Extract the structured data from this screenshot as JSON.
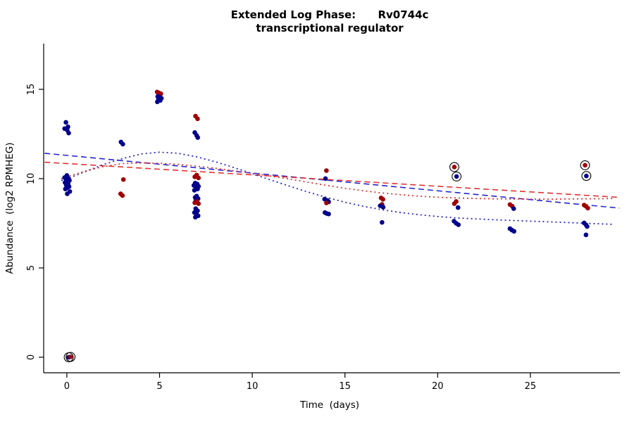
{
  "title": {
    "line1": "Extended Log Phase:      Rv0744c",
    "line2": "transcriptional regulator"
  },
  "chart_data": {
    "type": "scatter",
    "title": "Extended Log Phase: Rv0744c",
    "subtitle": "transcriptional regulator",
    "xlabel": "Time  (days)",
    "ylabel": "Abundance  (log2 RPMHEG)",
    "xlim": [
      -1.25,
      29.83
    ],
    "ylim": [
      -0.87,
      17.56
    ],
    "xticks": [
      0,
      5,
      10,
      15,
      20,
      25
    ],
    "yticks": [
      0,
      5,
      10,
      15
    ],
    "grid": false,
    "legend": "none",
    "colors": {
      "b": "#00008B",
      "r": "#A00000",
      "blue_line": "#2525D0",
      "red_line": "#E23333",
      "ring": "#000000"
    },
    "curves": [
      {
        "name": "blue-dashed-linear-fit",
        "color": "#2525D0",
        "dash": "8,5",
        "width": 1.6,
        "points": [
          [
            -1.2,
            11.42
          ],
          [
            29.8,
            8.35
          ]
        ]
      },
      {
        "name": "red-dashed-linear-fit",
        "color": "#E23333",
        "dash": "8,5",
        "width": 1.6,
        "points": [
          [
            -1.2,
            10.92
          ],
          [
            29.8,
            8.95
          ]
        ]
      },
      {
        "name": "blue-dotted-smooth-fit",
        "color": "#2525D0",
        "dash": "2,4",
        "width": 1.8,
        "points": [
          [
            -0.3,
            9.9
          ],
          [
            0,
            9.98
          ],
          [
            1,
            10.4
          ],
          [
            2,
            10.8
          ],
          [
            3,
            11.12
          ],
          [
            4,
            11.38
          ],
          [
            5,
            11.48
          ],
          [
            6,
            11.42
          ],
          [
            7,
            11.22
          ],
          [
            8,
            10.95
          ],
          [
            9,
            10.62
          ],
          [
            10,
            10.28
          ],
          [
            11,
            9.92
          ],
          [
            12,
            9.58
          ],
          [
            13,
            9.25
          ],
          [
            14,
            8.95
          ],
          [
            15,
            8.68
          ],
          [
            16,
            8.45
          ],
          [
            17,
            8.26
          ],
          [
            18,
            8.1
          ],
          [
            19,
            7.98
          ],
          [
            20,
            7.88
          ],
          [
            21,
            7.8
          ],
          [
            22,
            7.75
          ],
          [
            23,
            7.7
          ],
          [
            24,
            7.66
          ],
          [
            25,
            7.62
          ],
          [
            26,
            7.58
          ],
          [
            27,
            7.54
          ],
          [
            28,
            7.5
          ],
          [
            29,
            7.46
          ],
          [
            29.5,
            7.44
          ]
        ]
      },
      {
        "name": "red-dotted-smooth-fit",
        "color": "#E23333",
        "dash": "2,4",
        "width": 1.8,
        "points": [
          [
            -0.3,
            10.0
          ],
          [
            0,
            10.1
          ],
          [
            1,
            10.42
          ],
          [
            2,
            10.68
          ],
          [
            3,
            10.84
          ],
          [
            4,
            10.88
          ],
          [
            5,
            10.86
          ],
          [
            6,
            10.8
          ],
          [
            7,
            10.7
          ],
          [
            8,
            10.58
          ],
          [
            9,
            10.44
          ],
          [
            10,
            10.3
          ],
          [
            11,
            10.14
          ],
          [
            12,
            9.98
          ],
          [
            13,
            9.8
          ],
          [
            14,
            9.62
          ],
          [
            15,
            9.46
          ],
          [
            16,
            9.32
          ],
          [
            17,
            9.2
          ],
          [
            18,
            9.1
          ],
          [
            19,
            9.02
          ],
          [
            20,
            8.96
          ],
          [
            21,
            8.92
          ],
          [
            22,
            8.89
          ],
          [
            23,
            8.87
          ],
          [
            24,
            8.86
          ],
          [
            25,
            8.85
          ],
          [
            26,
            8.85
          ],
          [
            27,
            8.86
          ],
          [
            28,
            8.87
          ],
          [
            29,
            8.88
          ],
          [
            29.5,
            8.89
          ]
        ]
      }
    ],
    "points": [
      {
        "x": -0.05,
        "y": 13.15,
        "c": "b"
      },
      {
        "x": 0.06,
        "y": 12.9,
        "c": "b"
      },
      {
        "x": -0.12,
        "y": 12.8,
        "c": "b"
      },
      {
        "x": 0.02,
        "y": 12.72,
        "c": "b"
      },
      {
        "x": 0.1,
        "y": 12.55,
        "c": "b"
      },
      {
        "x": 0.0,
        "y": 10.18,
        "c": "b"
      },
      {
        "x": -0.12,
        "y": 10.06,
        "c": "b"
      },
      {
        "x": 0.1,
        "y": 10.0,
        "c": "b"
      },
      {
        "x": -0.04,
        "y": 9.95,
        "c": "b"
      },
      {
        "x": 0.14,
        "y": 9.9,
        "c": "b"
      },
      {
        "x": 0.03,
        "y": 9.84,
        "c": "b"
      },
      {
        "x": -0.1,
        "y": 9.78,
        "c": "b"
      },
      {
        "x": 0.07,
        "y": 9.7,
        "c": "b"
      },
      {
        "x": -0.03,
        "y": 9.63,
        "c": "b"
      },
      {
        "x": 0.12,
        "y": 9.55,
        "c": "b"
      },
      {
        "x": 0.0,
        "y": 9.48,
        "c": "b"
      },
      {
        "x": -0.08,
        "y": 9.42,
        "c": "b"
      },
      {
        "x": 0.16,
        "y": 9.28,
        "c": "b"
      },
      {
        "x": 0.02,
        "y": 9.15,
        "c": "b"
      },
      {
        "x": 0.1,
        "y": 0.0,
        "c": "b",
        "ring": true
      },
      {
        "x": 0.2,
        "y": 0.02,
        "c": "r",
        "ring": true
      },
      {
        "x": 2.92,
        "y": 12.05,
        "c": "b"
      },
      {
        "x": 3.02,
        "y": 11.93,
        "c": "b"
      },
      {
        "x": 3.05,
        "y": 9.95,
        "c": "r"
      },
      {
        "x": 2.9,
        "y": 9.15,
        "c": "r"
      },
      {
        "x": 3.0,
        "y": 9.05,
        "c": "r"
      },
      {
        "x": 4.87,
        "y": 14.85,
        "c": "r"
      },
      {
        "x": 4.97,
        "y": 14.8,
        "c": "r"
      },
      {
        "x": 5.07,
        "y": 14.75,
        "c": "r"
      },
      {
        "x": 4.9,
        "y": 14.6,
        "c": "b"
      },
      {
        "x": 5.0,
        "y": 14.55,
        "c": "b"
      },
      {
        "x": 5.1,
        "y": 14.5,
        "c": "b"
      },
      {
        "x": 4.94,
        "y": 14.44,
        "c": "b"
      },
      {
        "x": 5.04,
        "y": 14.38,
        "c": "b"
      },
      {
        "x": 4.88,
        "y": 14.3,
        "c": "b"
      },
      {
        "x": 6.94,
        "y": 13.5,
        "c": "r"
      },
      {
        "x": 7.05,
        "y": 13.35,
        "c": "r"
      },
      {
        "x": 6.9,
        "y": 12.58,
        "c": "b"
      },
      {
        "x": 7.0,
        "y": 12.42,
        "c": "b"
      },
      {
        "x": 7.06,
        "y": 12.3,
        "c": "b"
      },
      {
        "x": 7.0,
        "y": 10.2,
        "c": "r"
      },
      {
        "x": 6.9,
        "y": 10.1,
        "c": "r"
      },
      {
        "x": 7.1,
        "y": 10.04,
        "c": "r"
      },
      {
        "x": 6.92,
        "y": 9.75,
        "c": "b"
      },
      {
        "x": 7.03,
        "y": 9.7,
        "c": "b"
      },
      {
        "x": 6.85,
        "y": 9.62,
        "c": "b"
      },
      {
        "x": 7.1,
        "y": 9.57,
        "c": "b"
      },
      {
        "x": 6.96,
        "y": 9.5,
        "c": "b"
      },
      {
        "x": 7.05,
        "y": 9.42,
        "c": "b"
      },
      {
        "x": 6.88,
        "y": 9.35,
        "c": "b"
      },
      {
        "x": 7.0,
        "y": 9.02,
        "c": "b"
      },
      {
        "x": 6.92,
        "y": 8.95,
        "c": "b"
      },
      {
        "x": 7.08,
        "y": 8.88,
        "c": "b"
      },
      {
        "x": 6.96,
        "y": 8.8,
        "c": "b"
      },
      {
        "x": 7.02,
        "y": 8.72,
        "c": "r"
      },
      {
        "x": 6.9,
        "y": 8.65,
        "c": "r"
      },
      {
        "x": 7.1,
        "y": 8.6,
        "c": "r"
      },
      {
        "x": 6.95,
        "y": 8.32,
        "c": "b"
      },
      {
        "x": 7.05,
        "y": 8.2,
        "c": "b"
      },
      {
        "x": 6.88,
        "y": 8.1,
        "c": "b"
      },
      {
        "x": 7.0,
        "y": 8.0,
        "c": "b"
      },
      {
        "x": 7.08,
        "y": 7.92,
        "c": "b"
      },
      {
        "x": 6.93,
        "y": 7.84,
        "c": "b"
      },
      {
        "x": 14.0,
        "y": 10.45,
        "c": "r"
      },
      {
        "x": 13.95,
        "y": 10.0,
        "c": "b"
      },
      {
        "x": 13.9,
        "y": 8.85,
        "c": "b"
      },
      {
        "x": 14.05,
        "y": 8.78,
        "c": "b"
      },
      {
        "x": 14.12,
        "y": 8.7,
        "c": "b"
      },
      {
        "x": 14.0,
        "y": 8.64,
        "c": "r"
      },
      {
        "x": 13.92,
        "y": 8.1,
        "c": "b"
      },
      {
        "x": 14.02,
        "y": 8.05,
        "c": "b"
      },
      {
        "x": 14.12,
        "y": 8.02,
        "c": "b"
      },
      {
        "x": 16.95,
        "y": 8.92,
        "c": "r"
      },
      {
        "x": 17.05,
        "y": 8.84,
        "c": "r"
      },
      {
        "x": 17.0,
        "y": 8.56,
        "c": "r"
      },
      {
        "x": 16.9,
        "y": 8.48,
        "c": "b"
      },
      {
        "x": 17.06,
        "y": 8.4,
        "c": "b"
      },
      {
        "x": 17.0,
        "y": 7.55,
        "c": "b"
      },
      {
        "x": 20.9,
        "y": 10.65,
        "c": "r",
        "ring": true
      },
      {
        "x": 21.02,
        "y": 10.12,
        "c": "b",
        "ring": true
      },
      {
        "x": 21.0,
        "y": 8.72,
        "c": "r"
      },
      {
        "x": 20.9,
        "y": 8.6,
        "c": "r"
      },
      {
        "x": 21.1,
        "y": 8.38,
        "c": "b"
      },
      {
        "x": 20.88,
        "y": 7.62,
        "c": "b"
      },
      {
        "x": 21.0,
        "y": 7.5,
        "c": "b"
      },
      {
        "x": 21.12,
        "y": 7.42,
        "c": "b"
      },
      {
        "x": 23.9,
        "y": 8.55,
        "c": "r"
      },
      {
        "x": 24.02,
        "y": 8.46,
        "c": "r"
      },
      {
        "x": 24.1,
        "y": 8.32,
        "c": "b"
      },
      {
        "x": 23.9,
        "y": 7.2,
        "c": "b"
      },
      {
        "x": 24.0,
        "y": 7.12,
        "c": "b"
      },
      {
        "x": 24.12,
        "y": 7.05,
        "c": "b"
      },
      {
        "x": 27.95,
        "y": 10.75,
        "c": "r",
        "ring": true
      },
      {
        "x": 28.02,
        "y": 10.15,
        "c": "b",
        "ring": true
      },
      {
        "x": 27.9,
        "y": 8.52,
        "c": "r"
      },
      {
        "x": 28.0,
        "y": 8.45,
        "c": "r"
      },
      {
        "x": 28.1,
        "y": 8.35,
        "c": "r"
      },
      {
        "x": 27.9,
        "y": 7.52,
        "c": "b"
      },
      {
        "x": 28.0,
        "y": 7.42,
        "c": "b"
      },
      {
        "x": 28.06,
        "y": 7.32,
        "c": "b"
      },
      {
        "x": 28.0,
        "y": 6.85,
        "c": "b"
      }
    ]
  }
}
